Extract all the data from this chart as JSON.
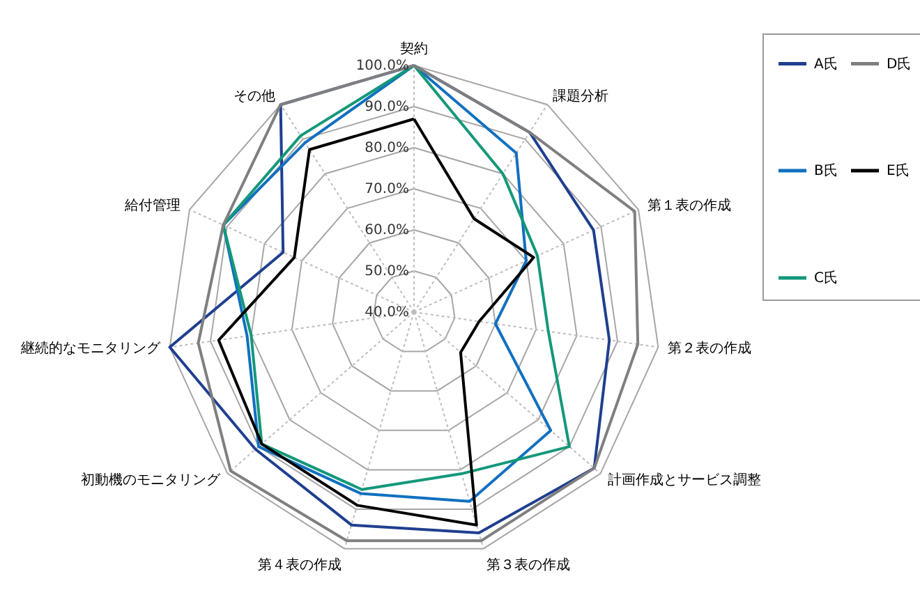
{
  "chart_data": {
    "type": "radar",
    "categories": [
      "契約",
      "課題分析",
      "第１表の作成",
      "第２表の作成",
      "計画作成とサービス調整",
      "第３表の作成",
      "第４表の作成",
      "初動機のモニタリング",
      "継続的なモニタリング",
      "給付管理",
      "その他"
    ],
    "ylim": [
      40,
      100
    ],
    "yticks": [
      {
        "value": 40,
        "label": "40.0%"
      },
      {
        "value": 50,
        "label": "50.0%"
      },
      {
        "value": 60,
        "label": "60.0%"
      },
      {
        "value": 70,
        "label": "70.0%"
      },
      {
        "value": 80,
        "label": "80.0%"
      },
      {
        "value": 90,
        "label": "90.0%"
      },
      {
        "value": 100,
        "label": "100.0%"
      }
    ],
    "grid": true,
    "legend": "right",
    "series": [
      {
        "name": "A氏",
        "color": "#1f3f8f",
        "values": [
          100,
          92,
          88,
          88,
          98,
          96,
          94,
          91,
          100,
          75,
          100
        ]
      },
      {
        "name": "B氏",
        "color": "#1170c0",
        "values": [
          100,
          86,
          70,
          60,
          84,
          88,
          86,
          90,
          81,
          91,
          89
        ]
      },
      {
        "name": "C氏",
        "color": "#14987a",
        "values": [
          100,
          80,
          73,
          73,
          90,
          81,
          85,
          89,
          80,
          91,
          91
        ]
      },
      {
        "name": "D氏",
        "color": "#7f7f7f",
        "values": [
          100,
          92,
          99,
          95,
          98,
          98,
          98,
          99,
          93,
          91,
          100
        ]
      },
      {
        "name": "E氏",
        "color": "#000000",
        "values": [
          87,
          67,
          72,
          56,
          55,
          94,
          89,
          89,
          88,
          72,
          87
        ]
      }
    ]
  }
}
